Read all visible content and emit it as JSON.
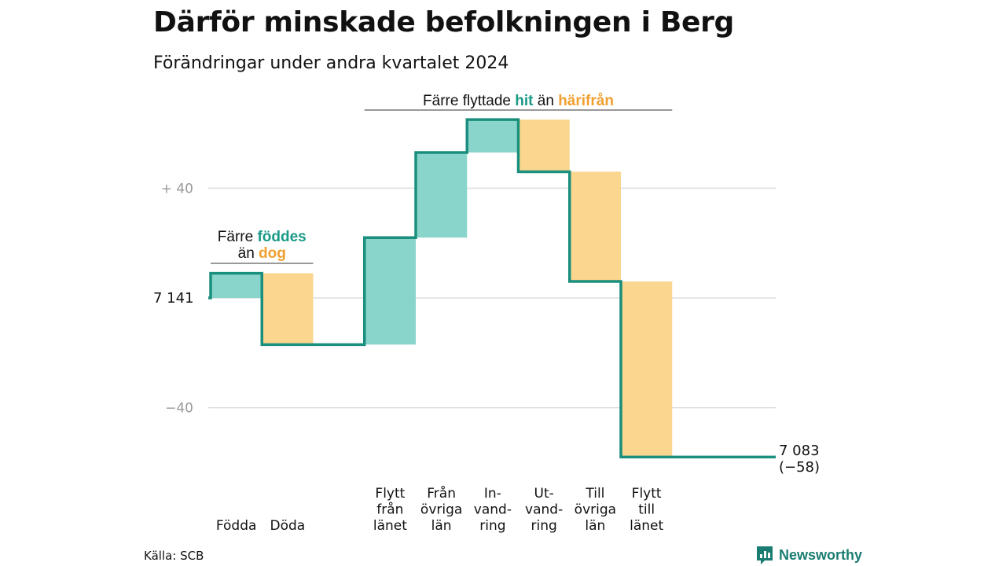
{
  "title": "Därför minskade befolkningen i Berg",
  "subtitle": "Förändringar under andra kvartalet 2024",
  "source": "Källa: SCB",
  "brand": "Newsworthy",
  "colors": {
    "increase": "#8ad5cb",
    "decrease": "#fad68f",
    "line": "#1a8f7d",
    "grid": "#dddddd",
    "axis_text": "#999999",
    "teal_text": "#1a9a88",
    "orange_text": "#f0a030"
  },
  "chart_data": {
    "type": "waterfall",
    "start_label": "7 141",
    "start_value": 7141,
    "end_label": "7 083",
    "end_change": "(−58)",
    "end_value": 7083,
    "ytick_labels": [
      "+ 40",
      "−40"
    ],
    "ytick_values": [
      40,
      -40
    ],
    "ylim": [
      -60,
      70
    ],
    "categories": [
      {
        "label": [
          "Födda"
        ],
        "change": 9,
        "kind": "increase"
      },
      {
        "label": [
          "Döda"
        ],
        "change": -26,
        "kind": "decrease"
      },
      {
        "label": [],
        "change": 0,
        "kind": "none"
      },
      {
        "label": [
          "Flytt",
          "från",
          "länet"
        ],
        "change": 39,
        "kind": "increase"
      },
      {
        "label": [
          "Från",
          "övriga",
          "län"
        ],
        "change": 31,
        "kind": "increase"
      },
      {
        "label": [
          "In-",
          "vand-",
          "ring"
        ],
        "change": 12,
        "kind": "increase"
      },
      {
        "label": [
          "Ut-",
          "vand-",
          "ring"
        ],
        "change": -19,
        "kind": "decrease"
      },
      {
        "label": [
          "Till",
          "övriga",
          "län"
        ],
        "change": -40,
        "kind": "decrease"
      },
      {
        "label": [
          "Flytt",
          "till",
          "länet"
        ],
        "change": -64,
        "kind": "decrease"
      }
    ],
    "annotations": [
      {
        "lines": [
          [
            {
              "t": "Färre ",
              "c": "plain"
            },
            {
              "t": "föddes",
              "c": "teal"
            }
          ],
          [
            {
              "t": "än ",
              "c": "plain"
            },
            {
              "t": "dog",
              "c": "orange"
            }
          ]
        ],
        "span": [
          0,
          1
        ]
      },
      {
        "lines": [
          [
            {
              "t": "Färre flyttade ",
              "c": "plain"
            },
            {
              "t": "hit",
              "c": "teal"
            },
            {
              "t": " än ",
              "c": "plain"
            },
            {
              "t": "härifrån",
              "c": "orange"
            }
          ]
        ],
        "span": [
          3,
          8
        ]
      }
    ]
  }
}
